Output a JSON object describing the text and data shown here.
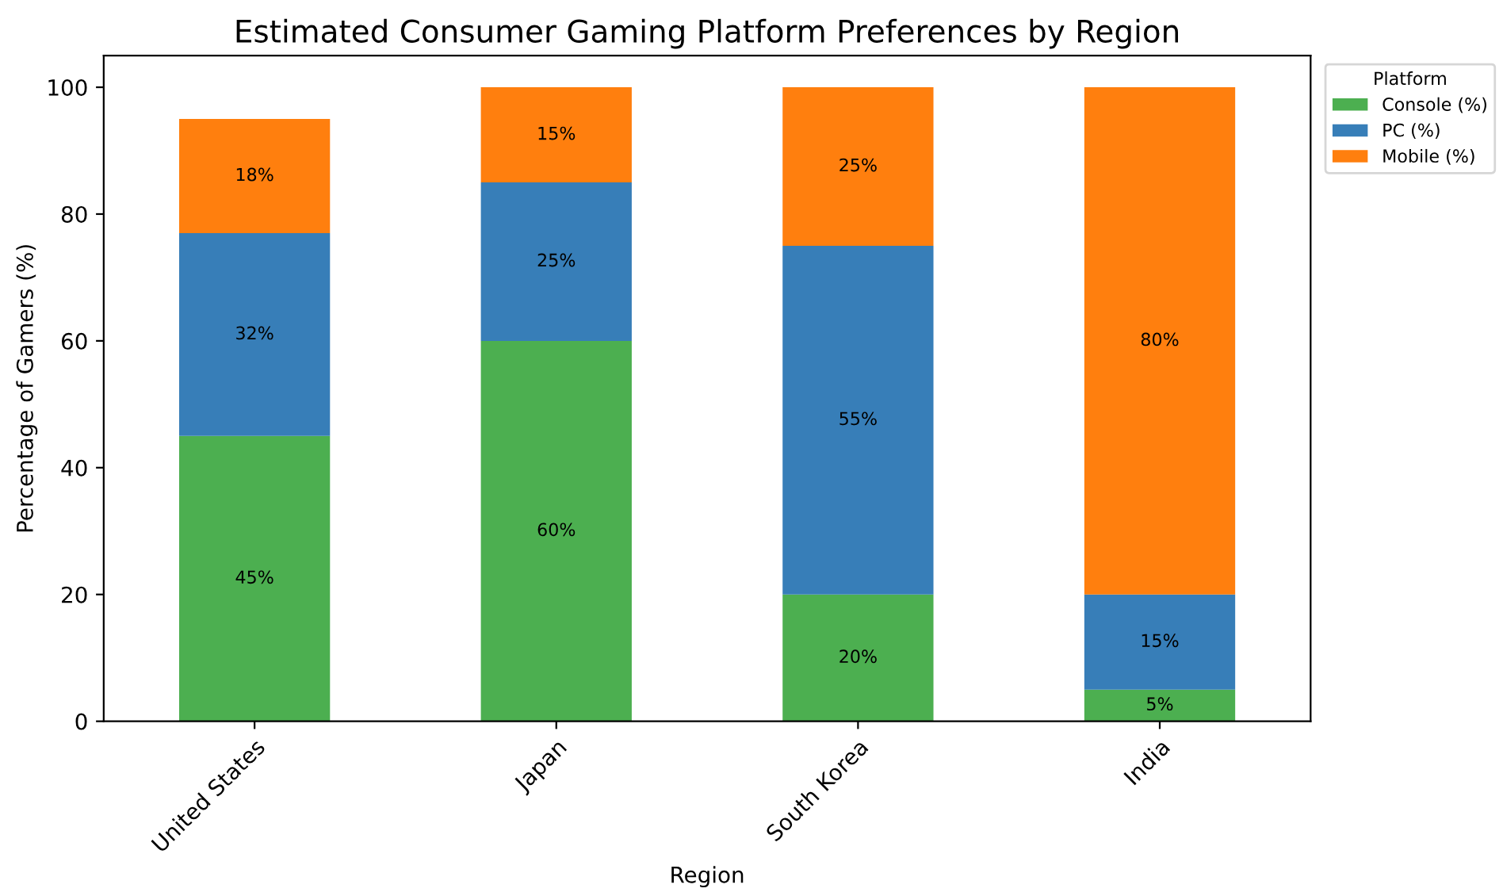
{
  "chart_data": {
    "type": "bar",
    "stacked": true,
    "title": "Estimated Consumer Gaming Platform Preferences by Region",
    "xlabel": "Region",
    "ylabel": "Percentage of Gamers (%)",
    "legend_title": "Platform",
    "legend": "top right",
    "grid": false,
    "categories": [
      "United States",
      "Japan",
      "South Korea",
      "India"
    ],
    "ylim": [
      0,
      105
    ],
    "yticks": [
      0,
      20,
      40,
      60,
      80,
      100
    ],
    "series": [
      {
        "name": "Console (%)",
        "color": "#4caf50",
        "values": [
          45,
          60,
          20,
          5
        ],
        "value_labels": [
          "45%",
          "60%",
          "20%",
          "5%"
        ]
      },
      {
        "name": "PC (%)",
        "color": "#377eb8",
        "values": [
          32,
          25,
          55,
          15
        ],
        "value_labels": [
          "32%",
          "25%",
          "55%",
          "15%"
        ]
      },
      {
        "name": "Mobile (%)",
        "color": "#ff7f0e",
        "values": [
          18,
          15,
          25,
          80
        ],
        "value_labels": [
          "18%",
          "15%",
          "25%",
          "80%"
        ]
      }
    ]
  }
}
